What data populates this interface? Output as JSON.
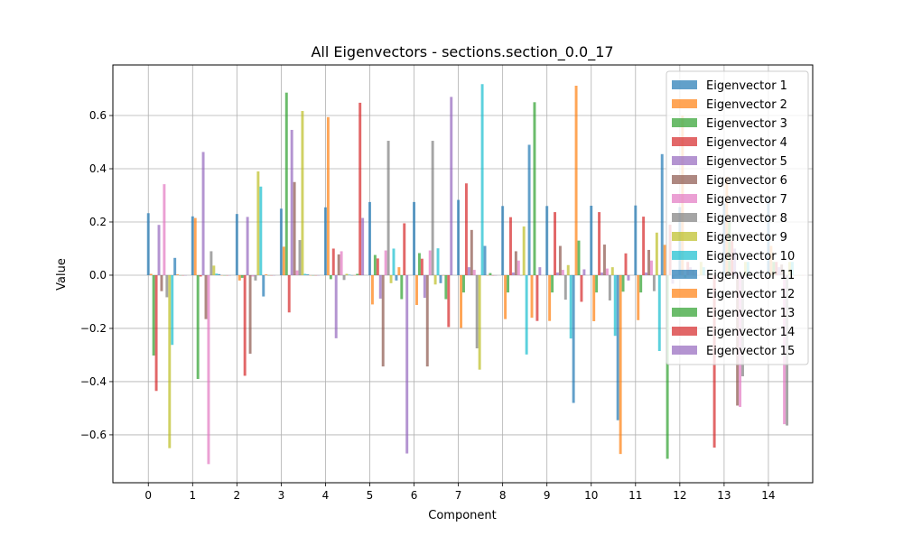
{
  "chart_data": {
    "type": "bar",
    "title": "All Eigenvectors - sections.section_0.0_17",
    "xlabel": "Component",
    "ylabel": "Value",
    "xlim": [
      -0.8,
      15.0
    ],
    "ylim": [
      -0.78,
      0.79
    ],
    "x_ticks": [
      "0",
      "1",
      "2",
      "3",
      "4",
      "5",
      "6",
      "7",
      "8",
      "9",
      "10",
      "11",
      "12",
      "13",
      "14"
    ],
    "y_ticks": [
      "−0.6",
      "−0.4",
      "−0.2",
      "0.0",
      "0.2",
      "0.4",
      "0.6"
    ],
    "grid": true,
    "legend_position": "top-right",
    "bar_alpha": 0.7,
    "series": [
      {
        "name": "Eigenvector 1",
        "color": "#1f77b4",
        "values": [
          0.233,
          0.221,
          0.23,
          0.25,
          0.255,
          0.275,
          0.275,
          0.283,
          0.26,
          0.26,
          0.261,
          0.262,
          0.256,
          0.269,
          0.295
        ]
      },
      {
        "name": "Eigenvector 2",
        "color": "#ff7f0e",
        "values": [
          0.005,
          0.215,
          -0.02,
          0.107,
          0.594,
          -0.11,
          -0.112,
          -0.198,
          -0.165,
          -0.172,
          -0.173,
          -0.169,
          0.6,
          0.37,
          0.11
        ]
      },
      {
        "name": "Eigenvector 3",
        "color": "#2ca02c",
        "values": [
          -0.302,
          -0.39,
          -0.01,
          0.686,
          -0.015,
          0.076,
          0.083,
          -0.065,
          -0.065,
          -0.065,
          -0.065,
          -0.065,
          -0.01,
          0.2,
          0.05
        ]
      },
      {
        "name": "Eigenvector 4",
        "color": "#d62728",
        "values": [
          -0.435,
          -0.005,
          -0.378,
          -0.14,
          0.1,
          0.063,
          0.062,
          0.345,
          0.218,
          0.237,
          0.237,
          0.22,
          0.05,
          0.13,
          0.05
        ]
      },
      {
        "name": "Eigenvector 5",
        "color": "#9467bd",
        "values": [
          0.189,
          0.463,
          0.219,
          0.546,
          -0.237,
          -0.088,
          -0.085,
          0.03,
          0.01,
          0.01,
          0.01,
          0.01,
          0.03,
          0.1,
          0.03
        ]
      },
      {
        "name": "Eigenvector 6",
        "color": "#8c564b",
        "values": [
          -0.06,
          -0.165,
          -0.295,
          0.35,
          0.078,
          -0.343,
          -0.343,
          0.17,
          0.09,
          0.11,
          0.115,
          0.095,
          0.02,
          -0.49,
          0.04
        ]
      },
      {
        "name": "Eigenvector 7",
        "color": "#e377c2",
        "values": [
          0.342,
          -0.71,
          -0.005,
          0.018,
          0.09,
          0.093,
          0.093,
          0.02,
          0.055,
          0.02,
          0.025,
          0.055,
          0.01,
          -0.495,
          -0.56
        ]
      },
      {
        "name": "Eigenvector 8",
        "color": "#7f7f7f",
        "values": [
          -0.083,
          0.09,
          -0.02,
          0.132,
          -0.018,
          0.505,
          0.505,
          -0.275,
          0.0,
          -0.092,
          -0.095,
          -0.06,
          0.0,
          -0.38,
          -0.565
        ]
      },
      {
        "name": "Eigenvector 9",
        "color": "#bcbd22",
        "values": [
          -0.65,
          0.036,
          0.39,
          0.617,
          0.005,
          -0.03,
          -0.035,
          -0.355,
          0.183,
          0.038,
          0.03,
          0.16,
          0.05,
          0.05,
          0.05
        ]
      },
      {
        "name": "Eigenvector 10",
        "color": "#17becf",
        "values": [
          -0.262,
          0.006,
          0.333,
          0.005,
          0.002,
          0.1,
          0.101,
          0.718,
          -0.298,
          -0.238,
          -0.228,
          -0.285,
          0.03,
          0.05,
          0.05
        ]
      },
      {
        "name": "Eigenvector 11",
        "color": "#1f77b4",
        "values": [
          0.065,
          0.004,
          -0.08,
          0.003,
          0.0,
          -0.02,
          -0.03,
          0.11,
          0.49,
          -0.48,
          -0.545,
          0.455,
          0.0,
          0.0,
          0.0
        ]
      },
      {
        "name": "Eigenvector 12",
        "color": "#ff7f0e",
        "values": [
          0.003,
          0.0,
          0.003,
          0.0,
          0.0,
          0.03,
          0.0,
          0.0,
          -0.16,
          0.712,
          -0.672,
          0.114,
          0.0,
          0.0,
          0.0
        ]
      },
      {
        "name": "Eigenvector 13",
        "color": "#2ca02c",
        "values": [
          0.0,
          0.0,
          0.0,
          0.0,
          0.005,
          -0.09,
          -0.09,
          0.008,
          0.65,
          0.13,
          -0.062,
          -0.69,
          0.0,
          0.0,
          0.0
        ]
      },
      {
        "name": "Eigenvector 14",
        "color": "#d62728",
        "values": [
          0.0,
          0.0,
          0.0,
          0.0,
          0.648,
          0.195,
          -0.195,
          0.0,
          -0.172,
          -0.1,
          0.082,
          0.19,
          -0.648,
          0.0,
          0.0
        ]
      },
      {
        "name": "Eigenvector 15",
        "color": "#9467bd",
        "values": [
          0.0,
          0.0,
          0.0,
          0.0,
          0.215,
          -0.67,
          0.67,
          0.0,
          0.03,
          0.022,
          -0.02,
          -0.032,
          0.0,
          0.0,
          0.0
        ]
      }
    ]
  }
}
